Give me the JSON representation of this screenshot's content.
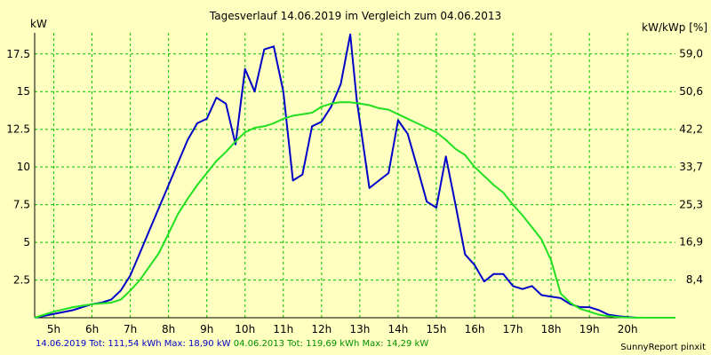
{
  "colors": {
    "background": "#ffffc0",
    "grid": "#00c000",
    "series_2019": "#0000c8",
    "series_2013": "#20e020",
    "axis": "#000000"
  },
  "footer": {
    "series_2019": "14.06.2019 Tot: 111,54 kWh Max: 18,90 kW",
    "series_2013": "04.06.2013 Tot: 119,69 kWh Max: 14,29 kW"
  },
  "credit": "SunnyReport pinxit",
  "chart_data": {
    "type": "line",
    "title": "Tagesverlauf 14.06.2019 im Vergleich zum 04.06.2013",
    "ylabel": "kW",
    "y2label": "kW/kWp [%]",
    "xlim": [
      4.5,
      21.25
    ],
    "ylim": [
      0,
      18.9
    ],
    "x_ticks": [
      5,
      6,
      7,
      8,
      9,
      10,
      11,
      12,
      13,
      14,
      15,
      16,
      17,
      18,
      19,
      20
    ],
    "x_tick_labels": [
      "5h",
      "6h",
      "7h",
      "8h",
      "9h",
      "10h",
      "11h",
      "12h",
      "13h",
      "14h",
      "15h",
      "16h",
      "17h",
      "18h",
      "19h",
      "20h"
    ],
    "y_ticks": [
      2.5,
      5,
      7.5,
      10,
      12.5,
      15,
      17.5
    ],
    "y_tick_labels": [
      "2.5",
      "5",
      "7.5",
      "10",
      "12.5",
      "15",
      "17.5"
    ],
    "y2_ticks": [
      2.52,
      5.02,
      7.52,
      10.0,
      12.52,
      15.02,
      17.52
    ],
    "y2_tick_labels": [
      "8,4",
      "16,9",
      "25,3",
      "33,7",
      "42,2",
      "50,6",
      "59,0"
    ],
    "grid": true,
    "series": [
      {
        "name": "14.06.2019",
        "color": "#0000c8",
        "x": [
          4.5,
          5.5,
          5.75,
          6,
          6.25,
          6.5,
          6.75,
          7,
          7.25,
          7.5,
          7.75,
          8,
          8.25,
          8.5,
          8.75,
          9,
          9.25,
          9.5,
          9.75,
          10,
          10.25,
          10.5,
          10.75,
          11,
          11.25,
          11.5,
          11.75,
          12,
          12.25,
          12.5,
          12.75,
          12.917,
          13.25,
          13.5,
          13.75,
          14,
          14.25,
          14.5,
          14.75,
          15,
          15.25,
          15.5,
          15.75,
          16,
          16.25,
          16.5,
          16.75,
          17,
          17.25,
          17.5,
          17.75,
          18,
          18.25,
          18.5,
          18.75,
          19,
          19.25,
          19.5,
          19.75,
          20,
          20.25
        ],
        "y": [
          0,
          0.5,
          0.7,
          0.9,
          1.0,
          1.2,
          1.8,
          2.8,
          4.3,
          5.8,
          7.3,
          8.8,
          10.3,
          11.8,
          12.9,
          13.2,
          14.6,
          14.2,
          11.5,
          16.5,
          15.0,
          17.8,
          18.0,
          15.0,
          9.1,
          9.5,
          12.7,
          13.0,
          14.0,
          15.5,
          18.8,
          14.5,
          8.6,
          9.1,
          9.6,
          13.1,
          12.2,
          10.0,
          7.7,
          7.3,
          10.7,
          7.5,
          4.2,
          3.5,
          2.4,
          2.9,
          2.9,
          2.1,
          1.9,
          2.1,
          1.5,
          1.4,
          1.3,
          0.9,
          0.7,
          0.7,
          0.5,
          0.2,
          0.1,
          0.05,
          0
        ]
      },
      {
        "name": "04.06.2013",
        "color": "#20e020",
        "x": [
          4.5,
          5,
          5.5,
          6,
          6.5,
          6.75,
          7,
          7.25,
          7.5,
          7.75,
          8,
          8.25,
          8.5,
          8.75,
          9,
          9.25,
          9.5,
          9.75,
          10,
          10.25,
          10.5,
          10.75,
          11,
          11.25,
          11.5,
          11.75,
          12,
          12.25,
          12.5,
          12.75,
          13,
          13.25,
          13.5,
          13.75,
          14,
          14.25,
          14.5,
          14.75,
          15,
          15.25,
          15.5,
          15.75,
          16,
          16.25,
          16.5,
          16.75,
          17,
          17.25,
          17.5,
          17.75,
          18,
          18.25,
          18.5,
          18.75,
          19,
          19.25,
          19.5,
          19.75,
          20,
          20.5,
          21.25
        ],
        "y": [
          0,
          0.4,
          0.7,
          0.9,
          1.0,
          1.2,
          1.8,
          2.5,
          3.4,
          4.3,
          5.6,
          6.9,
          7.9,
          8.8,
          9.6,
          10.4,
          11.0,
          11.7,
          12.3,
          12.6,
          12.7,
          12.9,
          13.2,
          13.4,
          13.5,
          13.6,
          14.0,
          14.2,
          14.3,
          14.29,
          14.2,
          14.1,
          13.9,
          13.8,
          13.5,
          13.2,
          12.9,
          12.6,
          12.3,
          11.8,
          11.2,
          10.8,
          10.0,
          9.4,
          8.8,
          8.3,
          7.5,
          6.8,
          6.0,
          5.2,
          3.8,
          1.6,
          1.0,
          0.6,
          0.4,
          0.2,
          0.1,
          0.05,
          0.02,
          0,
          0
        ]
      }
    ]
  }
}
